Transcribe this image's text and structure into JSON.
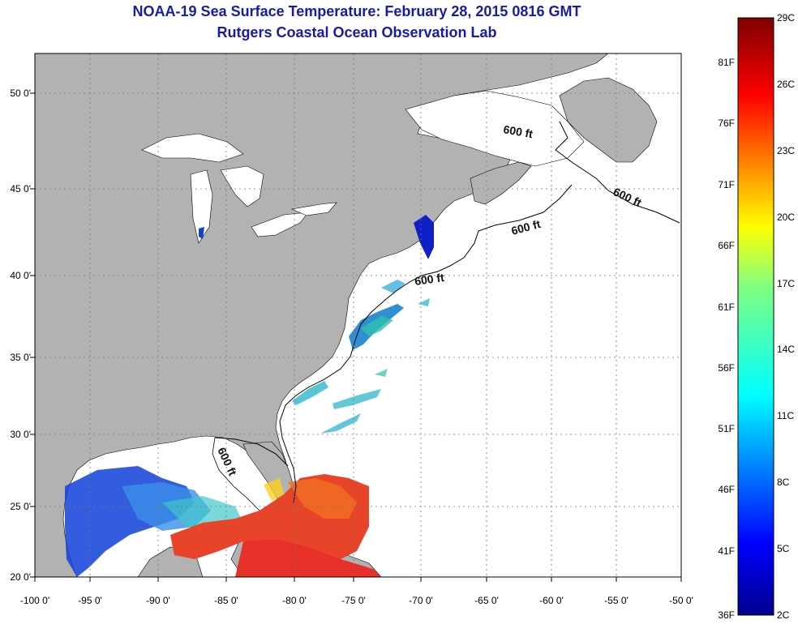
{
  "title": "NOAA-19 Sea Surface Temperature:  February 28, 2015 0816 GMT",
  "subtitle": "Rutgers Coastal Ocean Observation Lab",
  "x_ticks": [
    "-100 0'",
    "-95 0'",
    "-90 0'",
    "-85 0'",
    "-80 0'",
    "-75 0'",
    "-70 0'",
    "-65 0'",
    "-60 0'",
    "-55 0'",
    "-50 0'"
  ],
  "y_ticks": [
    "50 0'",
    "45 0'",
    "40 0'",
    "35 0'",
    "30 0'",
    "25 0'",
    "20 0'"
  ],
  "contour_label": "600 ft",
  "colorbar": {
    "celsius": [
      "29C",
      "26C",
      "23C",
      "20C",
      "17C",
      "14C",
      "11C",
      "8C",
      "5C",
      "2C"
    ],
    "fahrenheit": [
      "81F",
      "76F",
      "71F",
      "66F",
      "61F",
      "56F",
      "51F",
      "46F",
      "41F",
      "36F"
    ],
    "colors": [
      "#7f0000",
      "#ff0000",
      "#ff8000",
      "#ffff00",
      "#80ff80",
      "#00ffff",
      "#0080ff",
      "#0000ff",
      "#00008f"
    ]
  },
  "colors": {
    "land": "#b2b2b2",
    "title": "#1a1aa8",
    "warm": "#e8442a",
    "cool": "#1040d8"
  },
  "map": {
    "lon_range": [
      -100,
      -50
    ],
    "lat_range": [
      20,
      52
    ]
  }
}
